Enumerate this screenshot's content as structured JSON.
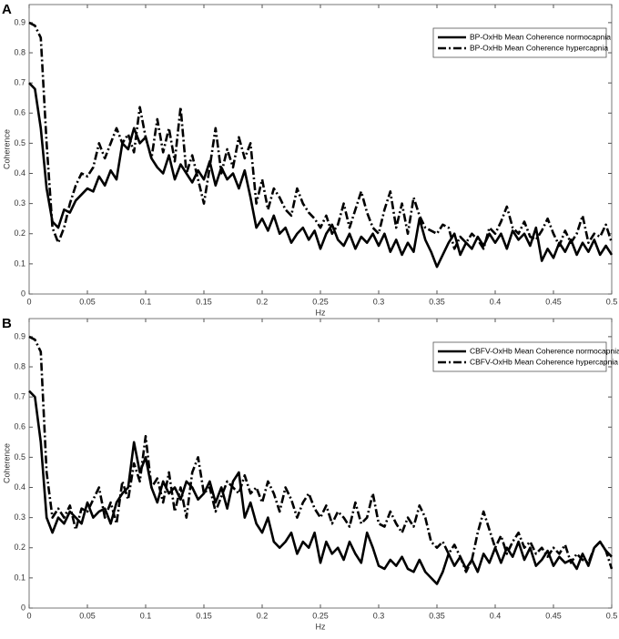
{
  "chart_data": [
    {
      "type": "line",
      "label": "A",
      "xlabel": "Hz",
      "ylabel": "Coherence",
      "x": [
        0,
        0.005,
        0.01,
        0.015,
        0.02,
        0.025,
        0.03,
        0.035,
        0.04,
        0.045,
        0.05,
        0.055,
        0.06,
        0.065,
        0.07,
        0.075,
        0.08,
        0.085,
        0.09,
        0.095,
        0.1,
        0.105,
        0.11,
        0.115,
        0.12,
        0.125,
        0.13,
        0.135,
        0.14,
        0.145,
        0.15,
        0.155,
        0.16,
        0.165,
        0.17,
        0.175,
        0.18,
        0.185,
        0.19,
        0.195,
        0.2,
        0.205,
        0.21,
        0.215,
        0.22,
        0.225,
        0.23,
        0.235,
        0.24,
        0.245,
        0.25,
        0.255,
        0.26,
        0.265,
        0.27,
        0.275,
        0.28,
        0.285,
        0.29,
        0.295,
        0.3,
        0.305,
        0.31,
        0.315,
        0.32,
        0.325,
        0.33,
        0.335,
        0.34,
        0.345,
        0.35,
        0.355,
        0.36,
        0.365,
        0.37,
        0.375,
        0.38,
        0.385,
        0.39,
        0.395,
        0.4,
        0.405,
        0.41,
        0.415,
        0.42,
        0.425,
        0.43,
        0.435,
        0.44,
        0.445,
        0.45,
        0.455,
        0.46,
        0.465,
        0.47,
        0.475,
        0.48,
        0.485,
        0.49,
        0.495,
        0.5
      ],
      "series": [
        {
          "name": "BP-OxHb Mean Coherence normocapnia",
          "color": "#000000",
          "dash": "solid",
          "values": [
            0.7,
            0.68,
            0.55,
            0.35,
            0.24,
            0.22,
            0.28,
            0.27,
            0.31,
            0.33,
            0.35,
            0.34,
            0.39,
            0.36,
            0.41,
            0.38,
            0.5,
            0.48,
            0.55,
            0.5,
            0.52,
            0.45,
            0.42,
            0.4,
            0.46,
            0.38,
            0.43,
            0.4,
            0.37,
            0.41,
            0.38,
            0.44,
            0.36,
            0.42,
            0.38,
            0.4,
            0.35,
            0.41,
            0.32,
            0.22,
            0.25,
            0.21,
            0.26,
            0.2,
            0.22,
            0.17,
            0.2,
            0.22,
            0.18,
            0.21,
            0.15,
            0.2,
            0.23,
            0.18,
            0.16,
            0.2,
            0.15,
            0.19,
            0.17,
            0.2,
            0.16,
            0.2,
            0.14,
            0.18,
            0.13,
            0.17,
            0.14,
            0.25,
            0.18,
            0.14,
            0.09,
            0.13,
            0.17,
            0.2,
            0.13,
            0.17,
            0.15,
            0.19,
            0.16,
            0.2,
            0.17,
            0.2,
            0.15,
            0.21,
            0.18,
            0.2,
            0.16,
            0.22,
            0.11,
            0.15,
            0.12,
            0.17,
            0.14,
            0.18,
            0.13,
            0.17,
            0.14,
            0.18,
            0.13,
            0.16,
            0.13
          ]
        },
        {
          "name": "BP-OxHb Mean Coherence hypercapnia",
          "color": "#000000",
          "dash": "dashdot",
          "values": [
            0.9,
            0.89,
            0.85,
            0.5,
            0.22,
            0.17,
            0.22,
            0.3,
            0.36,
            0.4,
            0.39,
            0.42,
            0.5,
            0.45,
            0.5,
            0.55,
            0.5,
            0.53,
            0.47,
            0.62,
            0.52,
            0.45,
            0.58,
            0.47,
            0.55,
            0.44,
            0.62,
            0.4,
            0.46,
            0.38,
            0.3,
            0.42,
            0.55,
            0.4,
            0.48,
            0.42,
            0.52,
            0.45,
            0.5,
            0.3,
            0.38,
            0.28,
            0.35,
            0.32,
            0.28,
            0.26,
            0.35,
            0.3,
            0.27,
            0.25,
            0.22,
            0.26,
            0.2,
            0.23,
            0.3,
            0.22,
            0.28,
            0.34,
            0.27,
            0.22,
            0.2,
            0.28,
            0.34,
            0.22,
            0.3,
            0.2,
            0.32,
            0.26,
            0.22,
            0.21,
            0.2,
            0.23,
            0.22,
            0.15,
            0.19,
            0.17,
            0.2,
            0.18,
            0.15,
            0.22,
            0.2,
            0.24,
            0.29,
            0.22,
            0.2,
            0.24,
            0.19,
            0.18,
            0.21,
            0.25,
            0.2,
            0.16,
            0.21,
            0.17,
            0.2,
            0.26,
            0.17,
            0.2,
            0.19,
            0.23,
            0.17
          ]
        }
      ],
      "xlim": [
        0,
        0.5
      ],
      "xticks": [
        0,
        0.05,
        0.1,
        0.15,
        0.2,
        0.25,
        0.3,
        0.35,
        0.4,
        0.45,
        0.5
      ],
      "ylim": [
        0,
        0.96
      ],
      "yticks": [
        0,
        0.1,
        0.2,
        0.3,
        0.4,
        0.5,
        0.6,
        0.7,
        0.8,
        0.9
      ],
      "legend": "upper right"
    },
    {
      "type": "line",
      "label": "B",
      "xlabel": "Hz",
      "ylabel": "Coherence",
      "x": [
        0,
        0.005,
        0.01,
        0.015,
        0.02,
        0.025,
        0.03,
        0.035,
        0.04,
        0.045,
        0.05,
        0.055,
        0.06,
        0.065,
        0.07,
        0.075,
        0.08,
        0.085,
        0.09,
        0.095,
        0.1,
        0.105,
        0.11,
        0.115,
        0.12,
        0.125,
        0.13,
        0.135,
        0.14,
        0.145,
        0.15,
        0.155,
        0.16,
        0.165,
        0.17,
        0.175,
        0.18,
        0.185,
        0.19,
        0.195,
        0.2,
        0.205,
        0.21,
        0.215,
        0.22,
        0.225,
        0.23,
        0.235,
        0.24,
        0.245,
        0.25,
        0.255,
        0.26,
        0.265,
        0.27,
        0.275,
        0.28,
        0.285,
        0.29,
        0.295,
        0.3,
        0.305,
        0.31,
        0.315,
        0.32,
        0.325,
        0.33,
        0.335,
        0.34,
        0.345,
        0.35,
        0.355,
        0.36,
        0.365,
        0.37,
        0.375,
        0.38,
        0.385,
        0.39,
        0.395,
        0.4,
        0.405,
        0.41,
        0.415,
        0.42,
        0.425,
        0.43,
        0.435,
        0.44,
        0.445,
        0.45,
        0.455,
        0.46,
        0.465,
        0.47,
        0.475,
        0.48,
        0.485,
        0.49,
        0.495,
        0.5
      ],
      "series": [
        {
          "name": "CBFV-OxHb Mean Coherence normocapnia",
          "color": "#000000",
          "dash": "solid",
          "values": [
            0.72,
            0.7,
            0.55,
            0.3,
            0.25,
            0.3,
            0.28,
            0.32,
            0.3,
            0.28,
            0.35,
            0.3,
            0.32,
            0.33,
            0.28,
            0.35,
            0.38,
            0.4,
            0.55,
            0.45,
            0.5,
            0.4,
            0.35,
            0.42,
            0.38,
            0.4,
            0.36,
            0.42,
            0.4,
            0.36,
            0.38,
            0.42,
            0.35,
            0.4,
            0.33,
            0.42,
            0.45,
            0.3,
            0.35,
            0.28,
            0.25,
            0.3,
            0.22,
            0.2,
            0.22,
            0.25,
            0.18,
            0.22,
            0.2,
            0.25,
            0.15,
            0.22,
            0.18,
            0.2,
            0.16,
            0.22,
            0.18,
            0.15,
            0.25,
            0.2,
            0.14,
            0.13,
            0.16,
            0.14,
            0.17,
            0.13,
            0.12,
            0.16,
            0.12,
            0.1,
            0.08,
            0.12,
            0.18,
            0.14,
            0.17,
            0.13,
            0.16,
            0.12,
            0.18,
            0.15,
            0.2,
            0.15,
            0.2,
            0.17,
            0.22,
            0.16,
            0.2,
            0.14,
            0.16,
            0.19,
            0.14,
            0.17,
            0.15,
            0.16,
            0.13,
            0.18,
            0.14,
            0.2,
            0.22,
            0.19,
            0.17
          ]
        },
        {
          "name": "CBFV-OxHb Mean Coherence hypercapnia",
          "color": "#000000",
          "dash": "dashdot",
          "values": [
            0.9,
            0.89,
            0.85,
            0.45,
            0.3,
            0.33,
            0.3,
            0.34,
            0.26,
            0.33,
            0.32,
            0.36,
            0.4,
            0.3,
            0.35,
            0.28,
            0.42,
            0.36,
            0.48,
            0.42,
            0.57,
            0.4,
            0.43,
            0.35,
            0.45,
            0.32,
            0.4,
            0.3,
            0.45,
            0.5,
            0.38,
            0.4,
            0.32,
            0.37,
            0.42,
            0.4,
            0.38,
            0.44,
            0.38,
            0.4,
            0.35,
            0.42,
            0.38,
            0.32,
            0.4,
            0.36,
            0.3,
            0.35,
            0.38,
            0.33,
            0.3,
            0.34,
            0.28,
            0.32,
            0.3,
            0.27,
            0.35,
            0.28,
            0.3,
            0.38,
            0.28,
            0.27,
            0.32,
            0.28,
            0.25,
            0.3,
            0.27,
            0.34,
            0.3,
            0.22,
            0.2,
            0.22,
            0.18,
            0.21,
            0.17,
            0.12,
            0.16,
            0.25,
            0.32,
            0.26,
            0.2,
            0.24,
            0.18,
            0.22,
            0.25,
            0.2,
            0.22,
            0.18,
            0.2,
            0.17,
            0.2,
            0.18,
            0.21,
            0.15,
            0.18,
            0.16,
            0.15,
            0.2,
            0.22,
            0.19,
            0.13
          ]
        }
      ],
      "xlim": [
        0,
        0.5
      ],
      "xticks": [
        0,
        0.05,
        0.1,
        0.15,
        0.2,
        0.25,
        0.3,
        0.35,
        0.4,
        0.45,
        0.5
      ],
      "ylim": [
        0,
        0.96
      ],
      "yticks": [
        0,
        0.1,
        0.2,
        0.3,
        0.4,
        0.5,
        0.6,
        0.7,
        0.8,
        0.9
      ],
      "legend": "upper right"
    }
  ]
}
